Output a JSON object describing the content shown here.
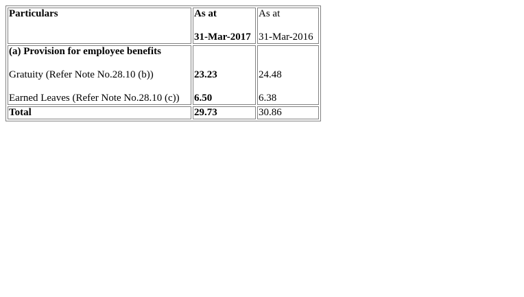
{
  "table": {
    "header": {
      "particulars": "Particulars",
      "col2017_line1": "As at",
      "col2017_line2": "31-Mar-2017",
      "col2016_line1": "As at",
      "col2016_line2": "31-Mar-2016"
    },
    "section": {
      "title": "(a) Provision for employee benefits",
      "rows": [
        {
          "label": "Gratuity (Refer Note No.28.10 (b))",
          "v2017": "23.23",
          "v2016": "24.48"
        },
        {
          "label": "Earned Leaves (Refer Note No.28.10 (c))",
          "v2017": "6.50",
          "v2016": "6.38"
        }
      ]
    },
    "total": {
      "label": "Total",
      "v2017": "29.73",
      "v2016": "30.86"
    }
  }
}
